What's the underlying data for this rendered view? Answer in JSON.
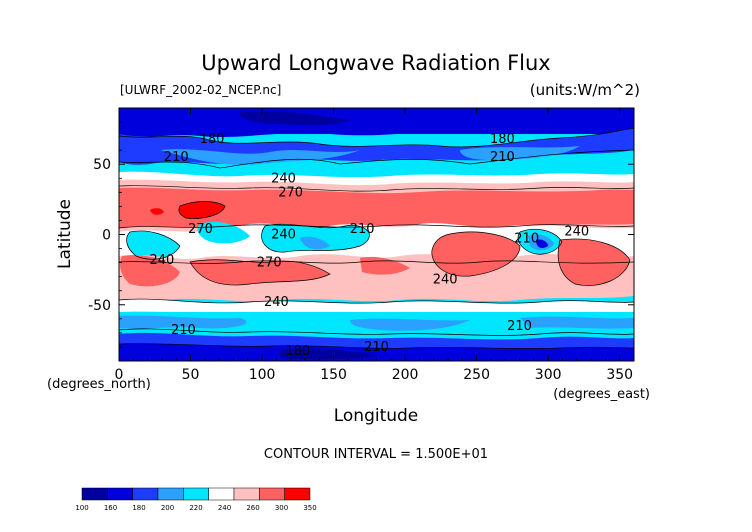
{
  "chart_data": {
    "type": "heatmap",
    "title": "Upward Longwave Radiation Flux",
    "subtitle_left": "[ULWRF_2002-02_NCEP.nc]",
    "units": "(units:W/m^2)",
    "xlabel": "Longitude",
    "ylabel": "Latitude",
    "x_unit_note": "(degrees_east)",
    "y_unit_note": "(degrees_north)",
    "xlim": [
      0,
      360
    ],
    "ylim": [
      -90,
      90
    ],
    "x_ticks": [
      0,
      50,
      100,
      150,
      200,
      250,
      300,
      350
    ],
    "y_ticks": [
      50,
      0,
      -50
    ],
    "contour_interval_text": "CONTOUR INTERVAL = 1.500E+01",
    "colorbar": {
      "levels": [
        100,
        160,
        180,
        200,
        220,
        240,
        260,
        300,
        350
      ],
      "colors": [
        "#0000a0",
        "#0000dd",
        "#1e3cff",
        "#2aa0ff",
        "#00e6ff",
        "#ffffff",
        "#ffc0c0",
        "#ff6060",
        "#ff0000"
      ]
    },
    "contour_labels": [
      {
        "text": "180",
        "lon": 65,
        "lat": 68
      },
      {
        "text": "210",
        "lon": 40,
        "lat": 55
      },
      {
        "text": "240",
        "lon": 115,
        "lat": 40
      },
      {
        "text": "270",
        "lon": 120,
        "lat": 30
      },
      {
        "text": "180",
        "lon": 268,
        "lat": 68
      },
      {
        "text": "210",
        "lon": 268,
        "lat": 55
      },
      {
        "text": "270",
        "lon": 57,
        "lat": 4
      },
      {
        "text": "240",
        "lon": 115,
        "lat": 0
      },
      {
        "text": "210",
        "lon": 170,
        "lat": 4
      },
      {
        "text": "240",
        "lon": 30,
        "lat": -18
      },
      {
        "text": "270",
        "lon": 105,
        "lat": -20
      },
      {
        "text": "240",
        "lon": 228,
        "lat": -32
      },
      {
        "text": "210",
        "lon": 285,
        "lat": -3
      },
      {
        "text": "240",
        "lon": 320,
        "lat": 2
      },
      {
        "text": "240",
        "lon": 110,
        "lat": -48
      },
      {
        "text": "210",
        "lon": 45,
        "lat": -68
      },
      {
        "text": "180",
        "lon": 125,
        "lat": -83
      },
      {
        "text": "210",
        "lon": 180,
        "lat": -80
      },
      {
        "text": "210",
        "lon": 280,
        "lat": -65
      }
    ],
    "zonal_bands": [
      {
        "lat_from": 90,
        "lat_to": 70,
        "range": "140-180"
      },
      {
        "lat_from": 70,
        "lat_to": 45,
        "range": "180-220"
      },
      {
        "lat_from": 45,
        "lat_to": 10,
        "range": "260-310"
      },
      {
        "lat_from": 10,
        "lat_to": -10,
        "range": "200-270"
      },
      {
        "lat_from": -10,
        "lat_to": -45,
        "range": "260-300"
      },
      {
        "lat_from": -45,
        "lat_to": -70,
        "range": "200-240"
      },
      {
        "lat_from": -70,
        "lat_to": -90,
        "range": "140-180"
      }
    ]
  }
}
